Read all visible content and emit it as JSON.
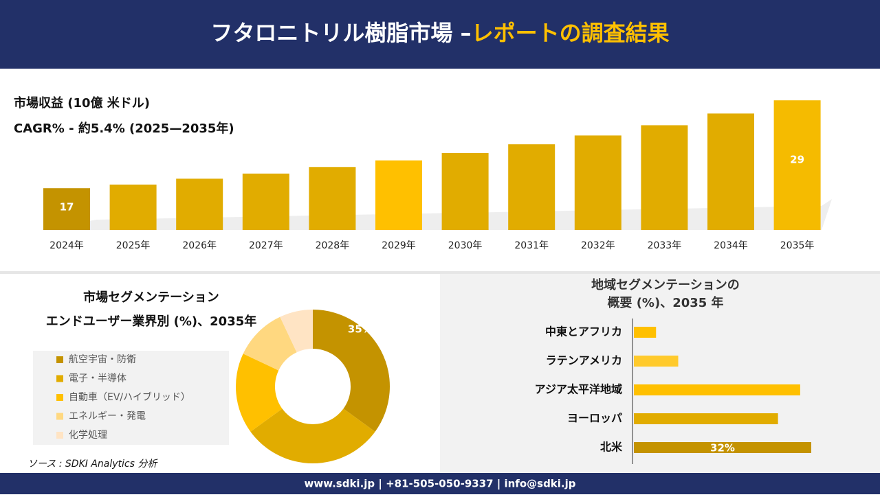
{
  "header": {
    "title": "フタロニトリル樹脂市場 –",
    "title_highlight": "レポートの調査結果"
  },
  "chart_data": [
    {
      "type": "bar",
      "title": "市場収益 (10億 米ドル)",
      "subtitle": "CAGR% - 約5.4% (2025—2035年)",
      "categories": [
        "2024年",
        "2025年",
        "2026年",
        "2027年",
        "2028年",
        "2029年",
        "2030年",
        "2031年",
        "2032年",
        "2033年",
        "2034年",
        "2035年"
      ],
      "values": [
        17,
        17.5,
        18.3,
        19.0,
        19.9,
        20.8,
        21.8,
        23.0,
        24.2,
        25.6,
        27.2,
        29
      ],
      "value_labels": [
        "17",
        null,
        null,
        null,
        null,
        null,
        null,
        null,
        null,
        null,
        null,
        "29"
      ],
      "colors": [
        "#c49300",
        "#e1ac00",
        "#e1ac00",
        "#e1ac00",
        "#e1ac00",
        "#ffc000",
        "#e1ac00",
        "#e1ac00",
        "#e1ac00",
        "#e1ac00",
        "#e1ac00",
        "#f5bb00"
      ],
      "ylim": [
        11.3,
        30
      ]
    },
    {
      "type": "donut",
      "title": [
        "市場セグメンテーション",
        "エンドユーザー業界別 (%)、2035年"
      ],
      "categories": [
        "航空宇宙・防衛",
        "電子・半導体",
        "自動車（EV/ハイブリッド）",
        "エネルギー・発電",
        "化学処理"
      ],
      "values": [
        35,
        30,
        17,
        11,
        7
      ],
      "value_labels": [
        "35%",
        null,
        null,
        null,
        null
      ],
      "colors": [
        "#c49300",
        "#e1ac00",
        "#ffc000",
        "#ffd880",
        "#ffe4c4"
      ]
    },
    {
      "type": "barh",
      "title": [
        "地域セグメンテーションの",
        "概要 (%)、2035 年"
      ],
      "categories": [
        "中東とアフリカ",
        "ラテンアメリカ",
        "アジア太平洋地域",
        "ヨーロッパ",
        "北米"
      ],
      "values": [
        4,
        8,
        30,
        26,
        32
      ],
      "value_labels": [
        null,
        null,
        null,
        null,
        "32%"
      ],
      "colors": [
        "#ffc000",
        "#ffca2c",
        "#ffc000",
        "#e1ac00",
        "#c49300"
      ],
      "xlim": [
        0,
        32
      ]
    }
  ],
  "source": "ソース : SDKI Analytics 分析",
  "footer": "www.sdki.jp | +81-505-050-9337 | info@sdki.jp"
}
